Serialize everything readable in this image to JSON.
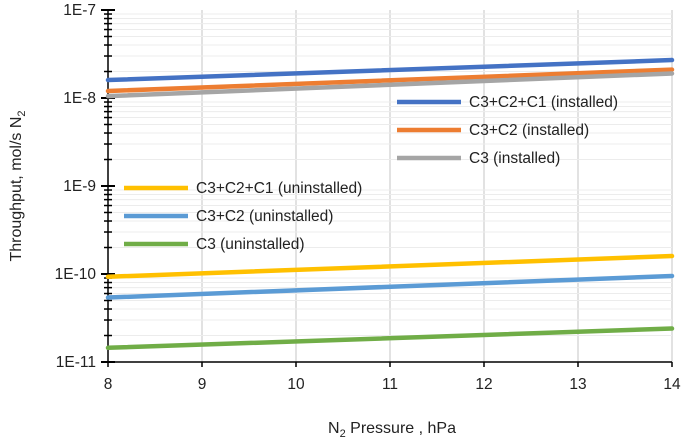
{
  "chart_data": {
    "type": "line",
    "xlabel_parts": [
      "N",
      "2",
      " Pressure , hPa"
    ],
    "ylabel_parts": [
      "Throughput, mol/s N",
      "2"
    ],
    "x": [
      8,
      14
    ],
    "xlim": [
      8,
      14
    ],
    "ylim": [
      1e-11,
      1e-07
    ],
    "y_scale": "log",
    "x_ticks": [
      8,
      9,
      10,
      11,
      12,
      13,
      14
    ],
    "x_tick_labels": [
      "8",
      "9",
      "10",
      "11",
      "12",
      "13",
      "14"
    ],
    "y_ticks": [
      1e-11,
      1e-10,
      1e-09,
      1e-08,
      1e-07
    ],
    "y_tick_labels": [
      "1E-11",
      "1E-10",
      "1E-9",
      "1E-8",
      "1E-7"
    ],
    "grid": "vertical major",
    "legend_groups": [
      {
        "placement": "right",
        "items": [
          0,
          1,
          2
        ]
      },
      {
        "placement": "left",
        "items": [
          3,
          4,
          5
        ]
      }
    ],
    "series": [
      {
        "name": "C3+C2+C1 (installed)",
        "color": "#4472C4",
        "values": [
          1.6e-08,
          2.7e-08
        ]
      },
      {
        "name": "C3+C2 (installed)",
        "color": "#ED7D31",
        "values": [
          1.2e-08,
          2.1e-08
        ]
      },
      {
        "name": "C3 (installed)",
        "color": "#A5A5A5",
        "values": [
          1.05e-08,
          1.9e-08
        ]
      },
      {
        "name": "C3+C2+C1 (uninstalled)",
        "color": "#FFC000",
        "values": [
          9.3e-11,
          1.6e-10
        ]
      },
      {
        "name": "C3+C2 (uninstalled)",
        "color": "#5B9BD5",
        "values": [
          5.4e-11,
          9.5e-11
        ]
      },
      {
        "name": "C3 (uninstalled)",
        "color": "#70AD47",
        "values": [
          1.45e-11,
          2.4e-11
        ]
      }
    ]
  }
}
